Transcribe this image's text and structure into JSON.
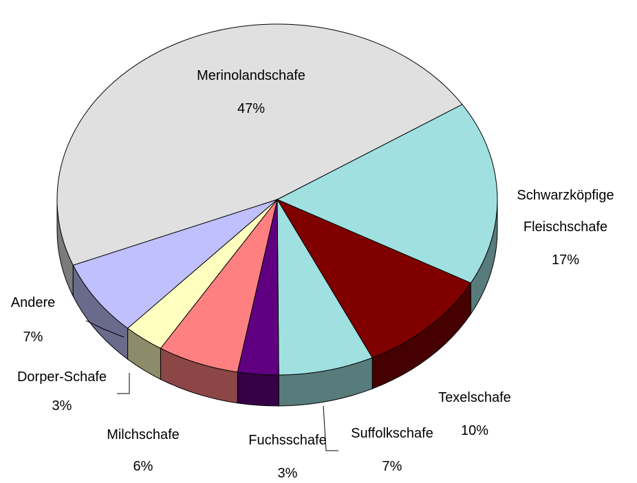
{
  "chart_data": {
    "type": "pie",
    "3d": true,
    "categories": [
      "Merinolandschafe",
      "Schwarzköpfige Fleischschafe",
      "Texelschafe",
      "Suffolkschafe",
      "Fuchsschafe",
      "Milchschafe",
      "Dorper-Schafe",
      "Andere"
    ],
    "values": [
      47,
      17,
      10,
      7,
      3,
      6,
      3,
      7
    ],
    "value_labels": [
      "47%",
      "17%",
      "10%",
      "7%",
      "3%",
      "6%",
      "3%",
      "7%"
    ],
    "colors": [
      "#e0e0e0",
      "#a0e0e0",
      "#800000",
      "#a0e0e0",
      "#600080",
      "#ff8080",
      "#ffffc0",
      "#c0c0ff"
    ],
    "start_angle": 158
  }
}
